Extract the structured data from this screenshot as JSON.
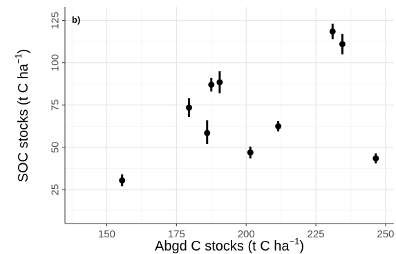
{
  "chart_data": {
    "type": "scatter",
    "panel_label": "b)",
    "xlabel": "Abgd C stocks (t C ha",
    "xlabel_exponent": "−1",
    "xlabel_close": ")",
    "ylabel": "SOC stocks (t C ha",
    "ylabel_exponent": "−1",
    "ylabel_close": ")",
    "xlim": [
      135,
      253
    ],
    "ylim": [
      5,
      133
    ],
    "x_ticks": [
      150,
      175,
      200,
      225,
      250
    ],
    "x_tick_labels": [
      "150",
      "175",
      "200",
      "225",
      "250"
    ],
    "y_ticks": [
      25,
      50,
      75,
      100,
      125
    ],
    "y_tick_labels": [
      "25",
      "50",
      "75",
      "100",
      "125"
    ],
    "grid": true,
    "legend": "none",
    "point_color": "#000000",
    "series": [
      {
        "points": [
          {
            "x": 155.5,
            "y": 30.5,
            "ymin": 27,
            "ymax": 34
          },
          {
            "x": 179.5,
            "y": 73.5,
            "ymin": 68,
            "ymax": 79
          },
          {
            "x": 186,
            "y": 58.5,
            "ymin": 52,
            "ymax": 66
          },
          {
            "x": 187.5,
            "y": 87,
            "ymin": 83,
            "ymax": 91
          },
          {
            "x": 190.5,
            "y": 88.5,
            "ymin": 82,
            "ymax": 95
          },
          {
            "x": 201.5,
            "y": 47,
            "ymin": 43.5,
            "ymax": 50.5
          },
          {
            "x": 211.5,
            "y": 62.5,
            "ymin": 59.5,
            "ymax": 65.5
          },
          {
            "x": 231,
            "y": 118.5,
            "ymin": 114,
            "ymax": 123
          },
          {
            "x": 234.5,
            "y": 111,
            "ymin": 105,
            "ymax": 117
          },
          {
            "x": 246.5,
            "y": 43.5,
            "ymin": 40.5,
            "ymax": 46.5
          }
        ]
      }
    ]
  }
}
